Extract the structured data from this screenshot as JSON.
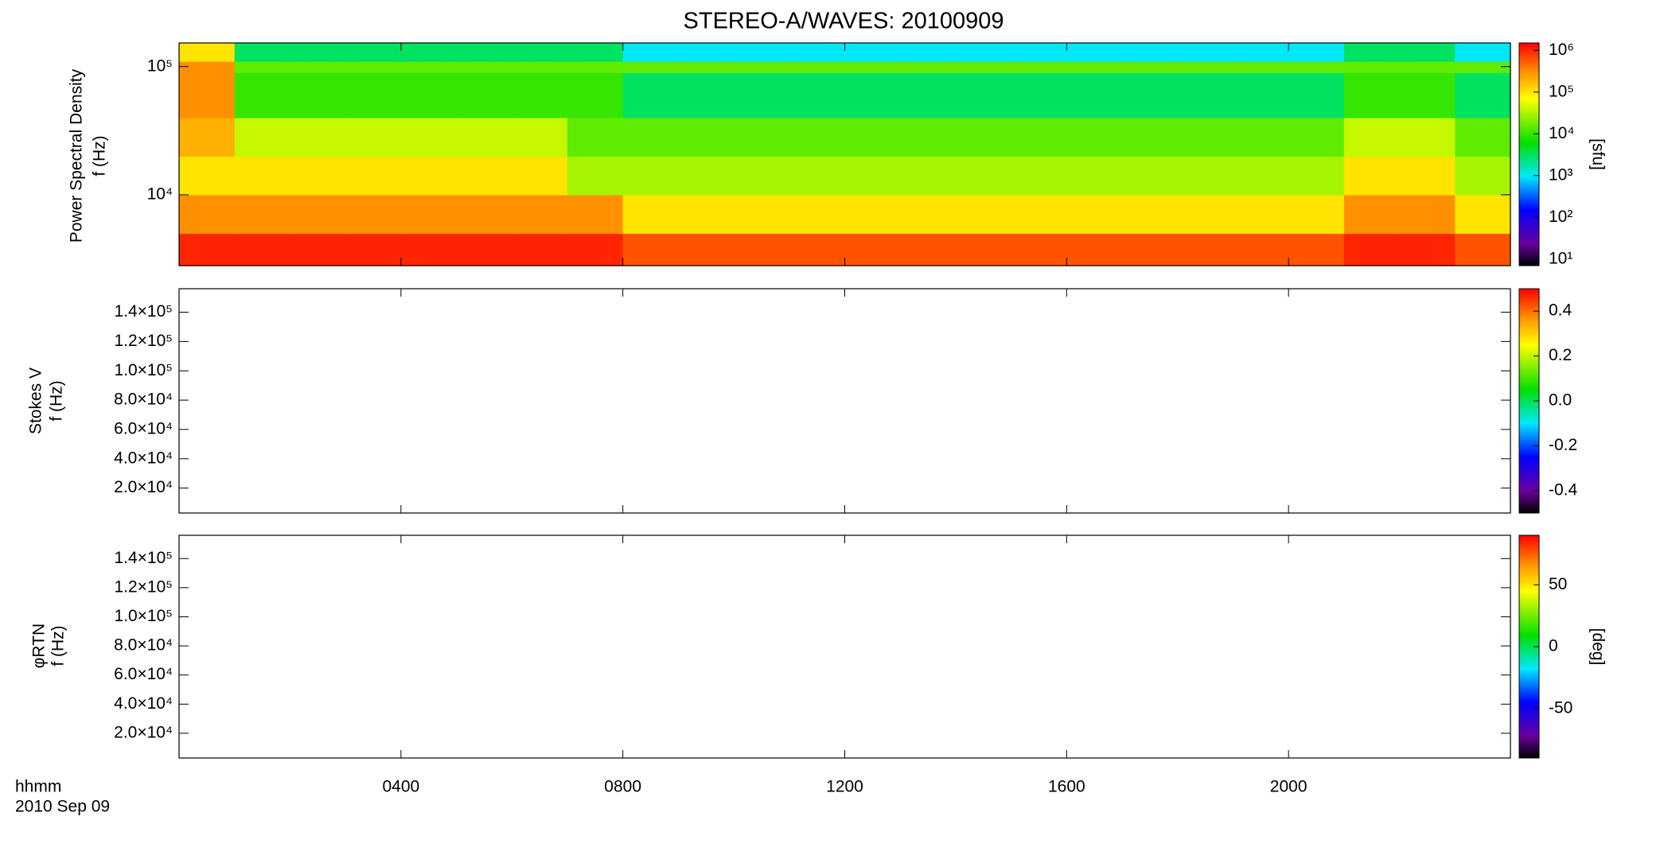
{
  "title": "STEREO-A/WAVES: 20100909",
  "xaxis": {
    "xlim": [
      0,
      24
    ],
    "xticks": [
      {
        "value": 4,
        "label": "0400"
      },
      {
        "value": 8,
        "label": "0800"
      },
      {
        "value": 12,
        "label": "1200"
      },
      {
        "value": 16,
        "label": "1600"
      },
      {
        "value": 20,
        "label": "2000"
      }
    ],
    "labels": [
      "hhmm",
      "2010 Sep 09"
    ]
  },
  "chart_data": [
    {
      "type": "heatmap",
      "ylabel": [
        "Power Spectral Density",
        "f (Hz)"
      ],
      "ylog": true,
      "ylim": [
        2800,
        153000
      ],
      "yticks": [
        {
          "value": 10000,
          "label": "10⁴"
        },
        {
          "value": 100000,
          "label": "10⁵"
        }
      ],
      "x_bins": [
        0,
        1,
        2,
        3,
        4,
        5,
        6,
        7,
        8,
        9,
        10,
        11,
        12,
        13,
        14,
        15,
        16,
        17,
        18,
        19,
        20,
        21,
        22,
        23,
        24
      ],
      "y_bins": [
        2800,
        5000,
        10000,
        20000,
        40000,
        90000,
        110000,
        153000
      ],
      "z": [
        [
          1000000,
          1000000,
          1000000,
          1000000,
          1000000,
          1000000,
          1000000,
          1000000,
          600000,
          600000,
          600000,
          600000,
          600000,
          600000,
          600000,
          600000,
          600000,
          600000,
          600000,
          600000,
          600000,
          1000000,
          1000000,
          600000
        ],
        [
          300000,
          300000,
          300000,
          300000,
          300000,
          300000,
          300000,
          300000,
          100000,
          100000,
          100000,
          100000,
          100000,
          100000,
          100000,
          100000,
          100000,
          100000,
          100000,
          100000,
          100000,
          300000,
          300000,
          100000
        ],
        [
          100000,
          100000,
          100000,
          100000,
          100000,
          100000,
          100000,
          30000,
          30000,
          30000,
          30000,
          30000,
          30000,
          30000,
          30000,
          30000,
          30000,
          30000,
          30000,
          30000,
          30000,
          100000,
          100000,
          30000
        ],
        [
          200000,
          40000,
          40000,
          40000,
          40000,
          40000,
          40000,
          15000,
          15000,
          15000,
          15000,
          15000,
          15000,
          15000,
          15000,
          15000,
          15000,
          15000,
          15000,
          15000,
          15000,
          40000,
          40000,
          15000
        ],
        [
          300000,
          10000,
          10000,
          10000,
          10000,
          10000,
          10000,
          10000,
          3000,
          3000,
          3000,
          3000,
          3000,
          3000,
          3000,
          3000,
          3000,
          3000,
          3000,
          3000,
          3000,
          10000,
          10000,
          3000
        ],
        [
          300000,
          15000,
          15000,
          15000,
          15000,
          15000,
          15000,
          15000,
          15000,
          15000,
          15000,
          15000,
          15000,
          15000,
          15000,
          15000,
          15000,
          15000,
          15000,
          15000,
          15000,
          15000,
          15000,
          15000
        ],
        [
          100000,
          3000,
          3000,
          3000,
          3000,
          3000,
          3000,
          3000,
          1000,
          1000,
          1000,
          1000,
          1000,
          1000,
          1000,
          1000,
          1000,
          1000,
          1000,
          1000,
          1000,
          3000,
          3000,
          1000
        ]
      ],
      "colorbar": {
        "log": true,
        "lim": [
          7,
          1500000
        ],
        "label": "[sfu]",
        "ticks": [
          {
            "value": 10,
            "label": "10¹"
          },
          {
            "value": 100,
            "label": "10²"
          },
          {
            "value": 1000,
            "label": "10³"
          },
          {
            "value": 10000,
            "label": "10⁴"
          },
          {
            "value": 100000,
            "label": "10⁵"
          },
          {
            "value": 1000000,
            "label": "10⁶"
          }
        ]
      }
    },
    {
      "type": "heatmap",
      "ylabel": [
        "Stokes V",
        "f (Hz)"
      ],
      "ylim": [
        3000,
        156000
      ],
      "yticks": [
        {
          "value": 20000,
          "label": "2.0×10⁴"
        },
        {
          "value": 40000,
          "label": "4.0×10⁴"
        },
        {
          "value": 60000,
          "label": "6.0×10⁴"
        },
        {
          "value": 80000,
          "label": "8.0×10⁴"
        },
        {
          "value": 100000,
          "label": "1.0×10⁵"
        },
        {
          "value": 120000,
          "label": "1.2×10⁵"
        },
        {
          "value": 140000,
          "label": "1.4×10⁵"
        }
      ],
      "colorbar": {
        "lim": [
          -0.5,
          0.5
        ],
        "ticks": [
          -0.4,
          -0.2,
          {
            "value": 0,
            "label": "0.0"
          },
          0.2,
          0.4
        ]
      }
    },
    {
      "type": "heatmap",
      "ylabel": [
        "φRTN",
        "f (Hz)"
      ],
      "ylim": [
        3000,
        156000
      ],
      "yticks": [
        {
          "value": 20000,
          "label": "2.0×10⁴"
        },
        {
          "value": 40000,
          "label": "4.0×10⁴"
        },
        {
          "value": 60000,
          "label": "6.0×10⁴"
        },
        {
          "value": 80000,
          "label": "8.0×10⁴"
        },
        {
          "value": 100000,
          "label": "1.0×10⁵"
        },
        {
          "value": 120000,
          "label": "1.2×10⁵"
        },
        {
          "value": 140000,
          "label": "1.4×10⁵"
        }
      ],
      "colorbar": {
        "lim": [
          -90,
          90
        ],
        "label": "[deg]",
        "ticks": [
          -50,
          0,
          50
        ]
      }
    }
  ]
}
